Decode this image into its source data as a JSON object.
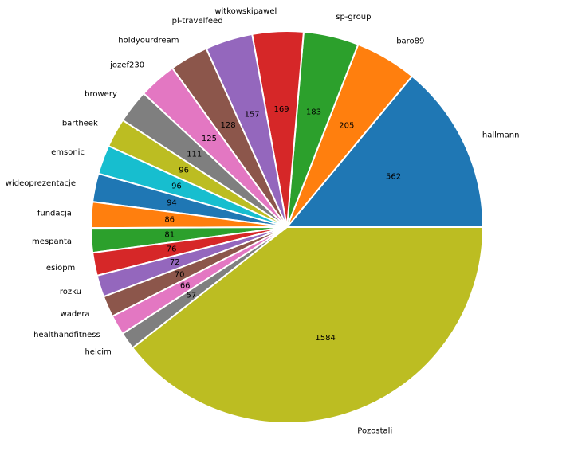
{
  "chart_data": {
    "type": "pie",
    "start_angle_deg": 0,
    "direction": "counterclockwise",
    "wedge_edge_color": "#ffffff",
    "slices": [
      {
        "label": "hallmann",
        "value": 562,
        "color": "#1f77b4"
      },
      {
        "label": "baro89",
        "value": 205,
        "color": "#ff7f0e"
      },
      {
        "label": "sp-group",
        "value": 183,
        "color": "#2ca02c"
      },
      {
        "label": "witkowskipawel",
        "value": 169,
        "color": "#d62728"
      },
      {
        "label": "pl-travelfeed",
        "value": 157,
        "color": "#9467bd"
      },
      {
        "label": "holdyourdream",
        "value": 128,
        "color": "#8c564b"
      },
      {
        "label": "jozef230",
        "value": 125,
        "color": "#e377c2"
      },
      {
        "label": "browery",
        "value": 111,
        "color": "#7f7f7f"
      },
      {
        "label": "bartheek",
        "value": 96,
        "color": "#bcbd22"
      },
      {
        "label": "emsonic",
        "value": 96,
        "color": "#17becf"
      },
      {
        "label": "wideoprezentacje",
        "value": 94,
        "color": "#1f77b4"
      },
      {
        "label": "fundacja",
        "value": 86,
        "color": "#ff7f0e"
      },
      {
        "label": "mespanta",
        "value": 81,
        "color": "#2ca02c"
      },
      {
        "label": "lesiopm",
        "value": 76,
        "color": "#d62728"
      },
      {
        "label": "rozku",
        "value": 72,
        "color": "#9467bd"
      },
      {
        "label": "wadera",
        "value": 70,
        "color": "#8c564b"
      },
      {
        "label": "healthandfitness",
        "value": 66,
        "color": "#e377c2"
      },
      {
        "label": "helcim",
        "value": 57,
        "color": "#7f7f7f"
      },
      {
        "label": "Pozostali",
        "value": 1584,
        "color": "#bcbd22"
      }
    ]
  }
}
